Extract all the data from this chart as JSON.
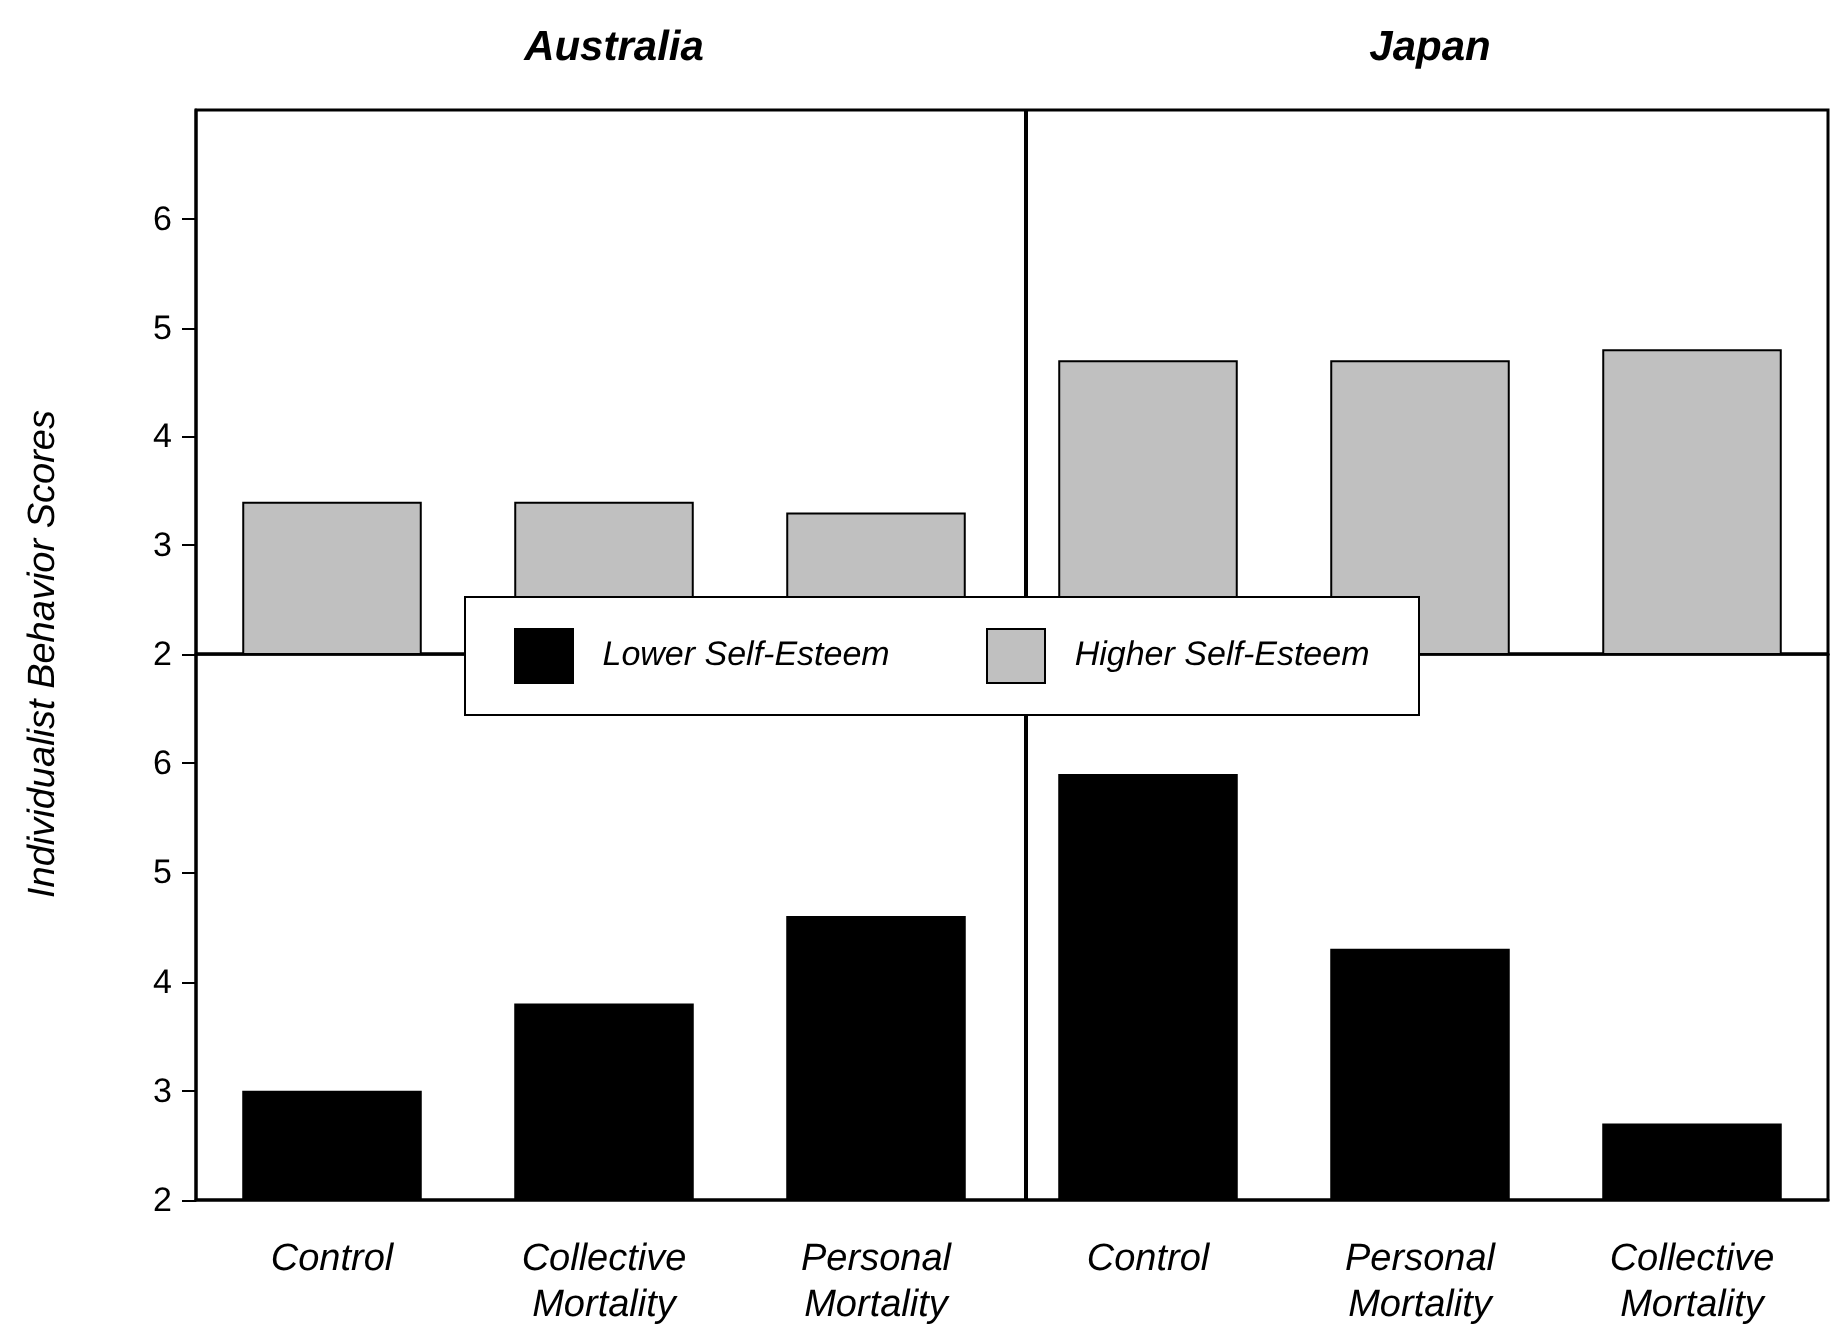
{
  "chart_data": [
    {
      "type": "bar",
      "ylabel": "Individualist Behavior Scores",
      "annotations": [
        "Australia",
        "Japan"
      ],
      "categories": [
        null,
        null,
        null,
        null,
        null,
        null
      ],
      "series": [
        {
          "name": "Higher Self-Esteem",
          "color": "#c0c0c0",
          "values": [
            3.4,
            3.4,
            3.3,
            4.7,
            4.7,
            4.8
          ]
        }
      ],
      "ylim": [
        2,
        7
      ],
      "yticks": [
        2,
        3,
        4,
        5,
        6
      ],
      "tick_labels": "y",
      "legend": "bottom"
    },
    {
      "type": "bar",
      "categories": [
        "Control",
        "Collective\nMortality",
        "Personal\nMortality",
        "Control",
        "Personal\nMortality",
        "Collective\nMortality"
      ],
      "series": [
        {
          "name": "Lower Self-Esteem",
          "color": "#000000",
          "values": [
            3.0,
            3.8,
            4.6,
            5.9,
            4.3,
            2.7
          ]
        }
      ],
      "ylim": [
        2,
        7
      ],
      "yticks": [
        2,
        3,
        4,
        5,
        6
      ],
      "legend": "top"
    }
  ]
}
